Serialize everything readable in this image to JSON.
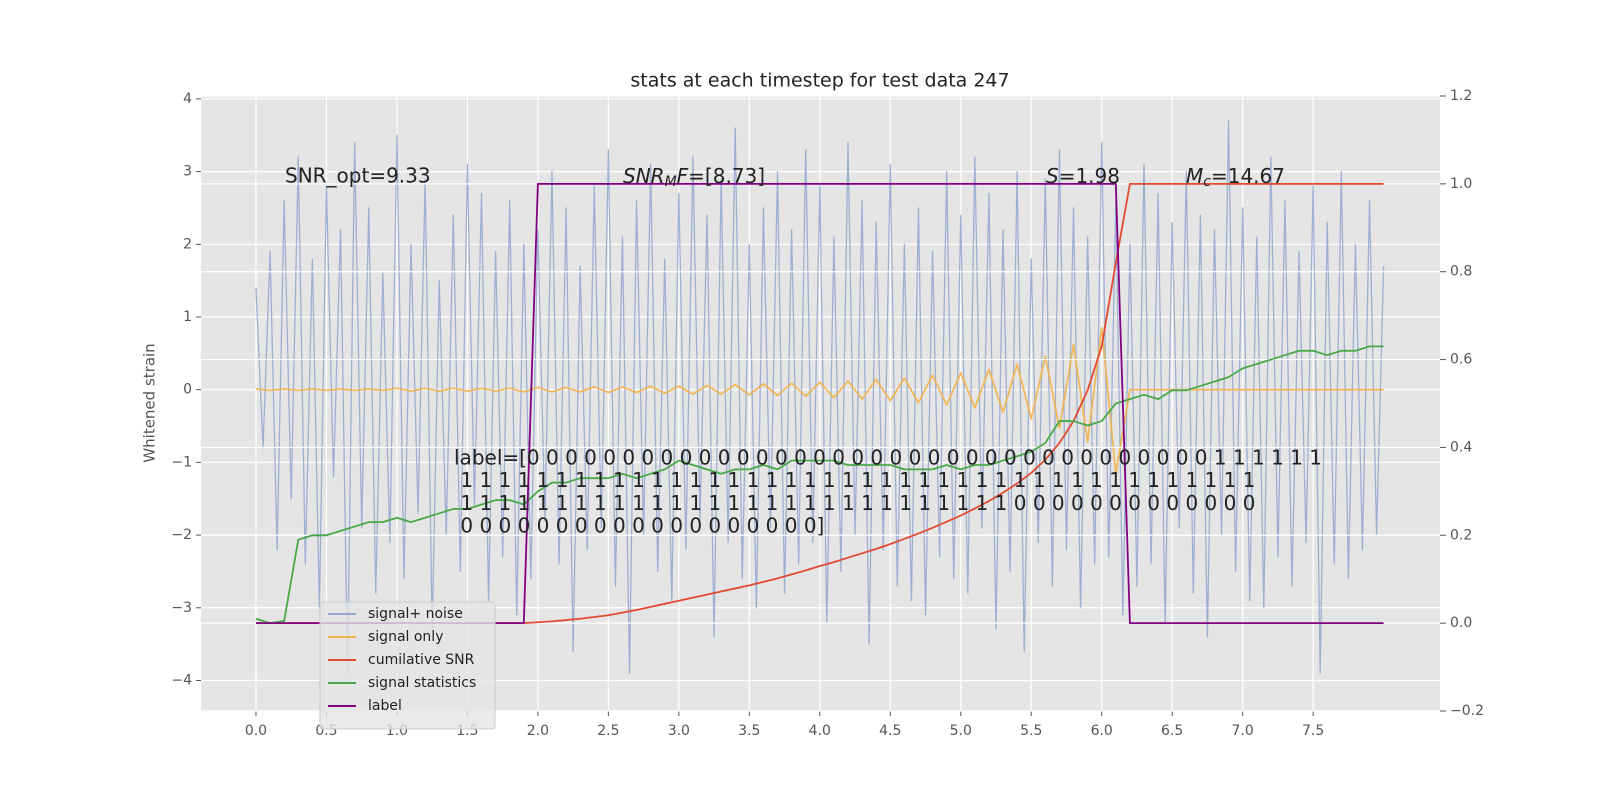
{
  "chart_data": {
    "type": "line",
    "title": "stats at each timestep for test data 247",
    "ylabel": "Whitened strain",
    "xlim": [
      -0.39,
      8.4
    ],
    "ylim": [
      -4.42,
      4.04
    ],
    "y2lim": [
      -0.2,
      1.2
    ],
    "xticks": [
      {
        "value": 0,
        "label": "0.0"
      },
      0.5,
      {
        "value": 1,
        "label": "1.0"
      },
      1.5,
      {
        "value": 2,
        "label": "2.0"
      },
      2.5,
      {
        "value": 3,
        "label": "3.0"
      },
      3.5,
      {
        "value": 4,
        "label": "4.0"
      },
      4.5,
      {
        "value": 5,
        "label": "5.0"
      },
      5.5,
      {
        "value": 6,
        "label": "6.0"
      },
      6.5,
      {
        "value": 7,
        "label": "7.0"
      },
      7.5
    ],
    "yticks": [
      {
        "value": -4,
        "label": "−4"
      },
      {
        "value": -3,
        "label": "−3"
      },
      {
        "value": -2,
        "label": "−2"
      },
      {
        "value": -1,
        "label": "−1"
      },
      0,
      1,
      2,
      3,
      4
    ],
    "y2ticks": [
      {
        "value": -0.2,
        "label": "−0.2"
      },
      {
        "value": 0,
        "label": "0.0"
      },
      0.2,
      0.4,
      0.6,
      0.8,
      {
        "value": 1,
        "label": "1.0"
      },
      1.2
    ],
    "grid": true,
    "legend": "lower left",
    "x": [
      0,
      0.1,
      0.2,
      0.3,
      0.4,
      0.5,
      0.6,
      0.7,
      0.8,
      0.9,
      1.0,
      1.1,
      1.2,
      1.3,
      1.4,
      1.5,
      1.6,
      1.7,
      1.8,
      1.9,
      2.0,
      2.1,
      2.2,
      2.3,
      2.4,
      2.5,
      2.6,
      2.7,
      2.8,
      2.9,
      3.0,
      3.1,
      3.2,
      3.3,
      3.4,
      3.5,
      3.6,
      3.7,
      3.8,
      3.9,
      4.0,
      4.1,
      4.2,
      4.3,
      4.4,
      4.5,
      4.6,
      4.7,
      4.8,
      4.9,
      5.0,
      5.1,
      5.2,
      5.3,
      5.4,
      5.5,
      5.6,
      5.7,
      5.8,
      5.9,
      6.0,
      6.1,
      6.2,
      6.3,
      6.4,
      6.5,
      6.6,
      6.7,
      6.8,
      6.9,
      7.0,
      7.1,
      7.2,
      7.3,
      7.4,
      7.5,
      7.6,
      7.7,
      7.8,
      7.9,
      8.0
    ],
    "series": [
      {
        "name": "signal+ noise",
        "color": "#96aacf",
        "x": [
          0,
          0.05,
          0.1,
          0.15,
          0.2,
          0.25,
          0.3,
          0.35,
          0.4,
          0.45,
          0.5,
          0.55,
          0.6,
          0.65,
          0.7,
          0.75,
          0.8,
          0.85,
          0.9,
          0.95,
          1.0,
          1.05,
          1.1,
          1.15,
          1.2,
          1.25,
          1.3,
          1.35,
          1.4,
          1.45,
          1.5,
          1.55,
          1.6,
          1.65,
          1.7,
          1.75,
          1.8,
          1.85,
          1.9,
          1.95,
          2.0,
          2.05,
          2.1,
          2.15,
          2.2,
          2.25,
          2.3,
          2.35,
          2.4,
          2.45,
          2.5,
          2.55,
          2.6,
          2.65,
          2.7,
          2.75,
          2.8,
          2.85,
          2.9,
          2.95,
          3.0,
          3.05,
          3.1,
          3.15,
          3.2,
          3.25,
          3.3,
          3.35,
          3.4,
          3.45,
          3.5,
          3.55,
          3.6,
          3.65,
          3.7,
          3.75,
          3.8,
          3.85,
          3.9,
          3.95,
          4.0,
          4.05,
          4.1,
          4.15,
          4.2,
          4.25,
          4.3,
          4.35,
          4.4,
          4.45,
          4.5,
          4.55,
          4.6,
          4.65,
          4.7,
          4.75,
          4.8,
          4.85,
          4.9,
          4.95,
          5.0,
          5.05,
          5.1,
          5.15,
          5.2,
          5.25,
          5.3,
          5.35,
          5.4,
          5.45,
          5.5,
          5.55,
          5.6,
          5.65,
          5.7,
          5.75,
          5.8,
          5.85,
          5.9,
          5.95,
          6.0,
          6.05,
          6.1,
          6.15,
          6.2,
          6.25,
          6.3,
          6.35,
          6.4,
          6.45,
          6.5,
          6.55,
          6.6,
          6.65,
          6.7,
          6.75,
          6.8,
          6.85,
          6.9,
          6.95,
          7.0,
          7.05,
          7.1,
          7.15,
          7.2,
          7.25,
          7.3,
          7.35,
          7.4,
          7.45,
          7.5,
          7.55,
          7.6,
          7.65,
          7.7,
          7.75,
          7.8,
          7.85,
          7.9,
          7.95,
          8.0
        ],
        "values": [
          1.4,
          -0.8,
          1.9,
          -2.2,
          2.6,
          -1.5,
          3.2,
          -2.4,
          1.8,
          -3.0,
          2.8,
          -1.2,
          2.2,
          -3.9,
          3.4,
          -1.9,
          2.5,
          -2.8,
          1.6,
          -2.1,
          3.5,
          -2.6,
          2.0,
          -1.7,
          2.9,
          -3.3,
          1.5,
          -2.0,
          2.4,
          -2.5,
          3.1,
          -1.6,
          2.7,
          -2.9,
          1.9,
          -2.3,
          2.6,
          -3.1,
          2.0,
          -2.6,
          2.2,
          -1.8,
          3.0,
          -2.4,
          2.5,
          -3.6,
          1.7,
          -2.2,
          2.8,
          -1.9,
          3.3,
          -2.7,
          2.1,
          -3.9,
          2.6,
          -2.0,
          3.1,
          -2.5,
          1.8,
          -2.9,
          2.7,
          -2.2,
          3.2,
          -1.8,
          2.4,
          -3.4,
          2.9,
          -2.1,
          3.6,
          -2.6,
          2.0,
          -3.0,
          2.5,
          -1.9,
          3.0,
          -2.8,
          2.2,
          -2.4,
          3.3,
          -2.1,
          2.8,
          -3.2,
          2.1,
          -2.5,
          3.4,
          -2.0,
          2.6,
          -3.5,
          2.3,
          -2.2,
          3.1,
          -2.7,
          2.0,
          -2.9,
          2.5,
          -3.1,
          1.9,
          -2.3,
          3.0,
          -2.6,
          2.4,
          -2.8,
          3.2,
          -1.9,
          2.7,
          -3.3,
          2.2,
          -2.5,
          3.0,
          -3.6,
          1.8,
          -2.1,
          2.9,
          -2.7,
          3.3,
          -2.2,
          2.5,
          -3.0,
          2.1,
          -2.4,
          3.4,
          -2.3,
          2.6,
          -3.1,
          2.0,
          -2.7,
          3.1,
          -2.4,
          2.7,
          -3.2,
          2.3,
          -1.9,
          3.0,
          -2.8,
          2.4,
          -3.4,
          2.2,
          -2.0,
          3.7,
          -2.5,
          2.5,
          -2.9,
          2.1,
          -3.0,
          3.2,
          -2.3,
          2.6,
          -2.7,
          1.9,
          -2.1,
          2.8,
          -3.9,
          2.3,
          -2.4,
          3.0,
          -2.6,
          2.0,
          -2.2,
          2.6,
          -2.0,
          1.7
        ]
      },
      {
        "name": "signal only",
        "color": "#f0b44c",
        "values": [
          0.01,
          -0.01,
          0.01,
          -0.01,
          0.01,
          -0.01,
          0.01,
          -0.01,
          0.01,
          -0.01,
          0.02,
          -0.02,
          0.02,
          -0.02,
          0.02,
          -0.02,
          0.02,
          -0.02,
          0.02,
          -0.03,
          0.03,
          -0.03,
          0.03,
          -0.03,
          0.04,
          -0.04,
          0.04,
          -0.04,
          0.05,
          -0.05,
          0.05,
          -0.06,
          0.06,
          -0.06,
          0.07,
          -0.07,
          0.08,
          -0.08,
          0.09,
          -0.09,
          0.1,
          -0.11,
          0.12,
          -0.13,
          0.14,
          -0.15,
          0.16,
          -0.18,
          0.2,
          -0.21,
          0.23,
          -0.25,
          0.28,
          -0.31,
          0.35,
          -0.4,
          0.46,
          -0.53,
          0.62,
          -0.72,
          0.85,
          -1.15,
          0,
          0,
          0,
          0,
          0,
          0,
          0,
          0,
          0,
          0,
          0,
          0,
          0,
          0,
          0,
          0,
          0,
          0,
          0
        ]
      },
      {
        "name": "cumilative SNR",
        "color": "#e24a33",
        "axis": "y2",
        "values": [
          0,
          0,
          0,
          0,
          0,
          0,
          0,
          0,
          0,
          0,
          0,
          0,
          0,
          0,
          0,
          0,
          0,
          0,
          0,
          0,
          0.002,
          0.004,
          0.007,
          0.01,
          0.014,
          0.018,
          0.024,
          0.03,
          0.037,
          0.044,
          0.051,
          0.058,
          0.065,
          0.072,
          0.079,
          0.086,
          0.094,
          0.102,
          0.111,
          0.12,
          0.13,
          0.139,
          0.149,
          0.159,
          0.169,
          0.18,
          0.192,
          0.204,
          0.217,
          0.231,
          0.245,
          0.261,
          0.278,
          0.297,
          0.318,
          0.342,
          0.372,
          0.41,
          0.46,
          0.53,
          0.63,
          0.82,
          1,
          1,
          1,
          1,
          1,
          1,
          1,
          1,
          1,
          1,
          1,
          1,
          1,
          1,
          1,
          1,
          1,
          1,
          1
        ]
      },
      {
        "name": "signal statistics",
        "color": "#4aa84a",
        "axis": "y2",
        "values": [
          0.01,
          0.0,
          0.005,
          0.19,
          0.2,
          0.2,
          0.21,
          0.22,
          0.23,
          0.23,
          0.24,
          0.23,
          0.24,
          0.25,
          0.26,
          0.26,
          0.27,
          0.28,
          0.28,
          0.27,
          0.3,
          0.32,
          0.32,
          0.33,
          0.33,
          0.33,
          0.34,
          0.33,
          0.34,
          0.35,
          0.37,
          0.36,
          0.35,
          0.34,
          0.35,
          0.35,
          0.36,
          0.35,
          0.37,
          0.37,
          0.37,
          0.37,
          0.36,
          0.36,
          0.36,
          0.36,
          0.35,
          0.35,
          0.35,
          0.36,
          0.35,
          0.36,
          0.36,
          0.37,
          0.38,
          0.39,
          0.41,
          0.46,
          0.46,
          0.45,
          0.46,
          0.5,
          0.51,
          0.52,
          0.51,
          0.53,
          0.53,
          0.54,
          0.55,
          0.56,
          0.58,
          0.59,
          0.6,
          0.61,
          0.62,
          0.62,
          0.61,
          0.62,
          0.62,
          0.63,
          0.63
        ]
      },
      {
        "name": "label",
        "color": "#800080",
        "axis": "y2",
        "values": [
          0,
          0,
          0,
          0,
          0,
          0,
          0,
          0,
          0,
          0,
          0,
          0,
          0,
          0,
          0,
          0,
          0,
          0,
          0,
          0,
          1,
          1,
          1,
          1,
          1,
          1,
          1,
          1,
          1,
          1,
          1,
          1,
          1,
          1,
          1,
          1,
          1,
          1,
          1,
          1,
          1,
          1,
          1,
          1,
          1,
          1,
          1,
          1,
          1,
          1,
          1,
          1,
          1,
          1,
          1,
          1,
          1,
          1,
          1,
          1,
          1,
          1,
          0,
          0,
          0,
          0,
          0,
          0,
          0,
          0,
          0,
          0,
          0,
          0,
          0,
          0,
          0,
          0,
          0,
          0,
          0
        ]
      }
    ],
    "annotations": {
      "snr_opt": "SNR_opt=9.33",
      "snr_mf": {
        "symbol": "SNR",
        "subscript": "M",
        "suffix": "F",
        "value": "=[8.73]"
      },
      "s": {
        "symbol": "S",
        "value": "=1.98"
      },
      "mc": {
        "symbol": "M",
        "subscript": "c",
        "value": "=14.67"
      },
      "label_text": [
        "label=[0 0 0 0 0 0 0 0 0 0 0 0 0 0 0 0 0 0 0 0 0 0 0 0 0 0 0 0 0 0 0 0 0 0 0 0 1 1 1 1 1 1",
        " 1 1 1 1 1 1 1 1 1 1 1 1 1 1 1 1 1 1 1 1 1 1 1 1 1 1 1 1 1 1 1 1 1 1 1 1 1 1 1 1 1 1",
        " 1 1 1 1 1 1 1 1 1 1 1 1 1 1 1 1 1 1 1 1 1 1 1 1 1 1 1 1 1 0 0 0 0 0 0 0 0 0 0 0 0 0",
        " 0 0 0 0 0 0 0 0 0 0 0 0 0 0 0 0 0 0 0]"
      ]
    }
  }
}
